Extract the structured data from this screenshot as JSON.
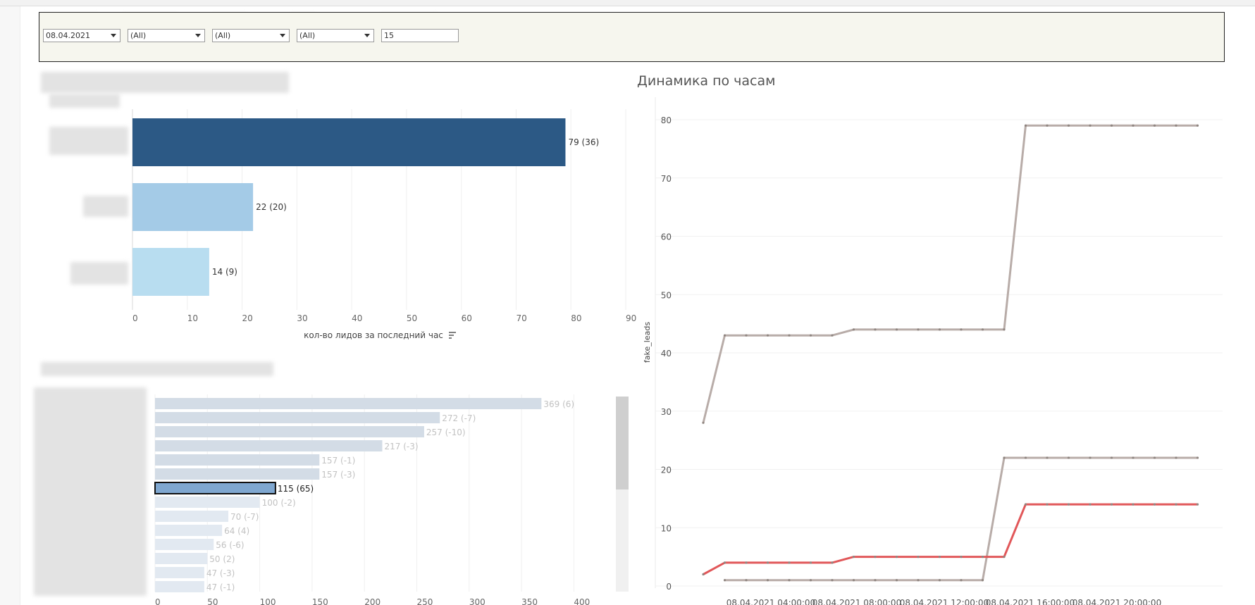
{
  "filters": [
    {
      "value": "08.04.2021",
      "has_dropdown": true
    },
    {
      "value": "(All)",
      "has_dropdown": true
    },
    {
      "value": "(All)",
      "has_dropdown": true
    },
    {
      "value": "(All)",
      "has_dropdown": true
    },
    {
      "value": "15",
      "has_dropdown": false
    }
  ],
  "line_chart_title": "Динамика по часам",
  "colors": {
    "dark_bar": "#2c5985",
    "mid_bar": "#a4cbe7",
    "light_bar": "#b8ddf0",
    "gray_line": "#b8aca8",
    "red_line": "#e15759",
    "pale_bar": "#d3dce6",
    "selected_bar": "#7fa7d0"
  },
  "chart_data": [
    {
      "type": "bar",
      "orientation": "horizontal",
      "values": [
        79,
        22,
        14
      ],
      "labels": [
        "79 (36)",
        "22 (20)",
        "14 (9)"
      ],
      "xlabel": "кол-во лидов за последний час",
      "xticks": [
        0,
        10,
        20,
        30,
        40,
        50,
        60,
        70,
        80,
        90
      ],
      "xlim": [
        0,
        90
      ]
    },
    {
      "type": "bar",
      "orientation": "horizontal",
      "values": [
        369,
        272,
        257,
        217,
        157,
        157,
        115,
        100,
        70,
        64,
        56,
        50,
        47,
        47
      ],
      "labels": [
        "369 (6)",
        "272 (-7)",
        "257 (-10)",
        "217 (-3)",
        "157 (-1)",
        "157 (-3)",
        "115 (65)",
        "100 (-2)",
        "70 (-7)",
        "64 (4)",
        "56 (-6)",
        "50 (2)",
        "47 (-3)",
        "47 (-1)"
      ],
      "selected_index": 6,
      "xticks": [
        0,
        50,
        100,
        150,
        200,
        250,
        300,
        350,
        400
      ],
      "xlim": [
        0,
        430
      ]
    },
    {
      "type": "line",
      "ylabel": "fake_leads",
      "ylim": [
        0,
        80
      ],
      "yticks": [
        0,
        10,
        20,
        30,
        40,
        50,
        60,
        70,
        80
      ],
      "xticks": [
        "08.04.2021 04:00:00",
        "08.04.2021 08:00:00",
        "08.04.2021 12:00:00",
        "08.04.2021 16:00:00",
        "08.04.2021 20:00:00"
      ],
      "x_hours": [
        0,
        1,
        2,
        3,
        4,
        5,
        6,
        7,
        8,
        9,
        10,
        11,
        12,
        13,
        14,
        15,
        16,
        17,
        18,
        19,
        20,
        21,
        22,
        23
      ],
      "series": [
        {
          "color": "#b8aca8",
          "values": [
            28,
            43,
            43,
            43,
            43,
            43,
            43,
            44,
            44,
            44,
            44,
            44,
            44,
            44,
            44,
            79,
            79,
            79,
            79,
            79,
            79,
            79,
            79,
            79
          ]
        },
        {
          "color": "#b8aca8",
          "values": [
            null,
            1,
            1,
            1,
            1,
            1,
            1,
            1,
            1,
            1,
            1,
            1,
            1,
            1,
            22,
            22,
            22,
            22,
            22,
            22,
            22,
            22,
            22,
            22
          ]
        },
        {
          "color": "#e15759",
          "values": [
            2,
            4,
            4,
            4,
            4,
            4,
            4,
            5,
            5,
            5,
            5,
            5,
            5,
            5,
            5,
            14,
            14,
            14,
            14,
            14,
            14,
            14,
            14,
            14
          ]
        }
      ]
    }
  ]
}
